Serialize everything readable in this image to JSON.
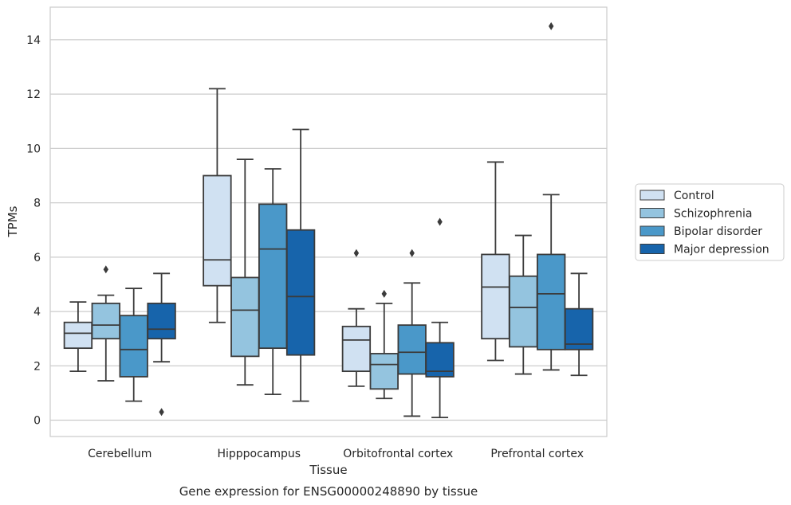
{
  "chart_data": {
    "type": "box",
    "title": "",
    "caption": "Gene expression for ENSG00000248890 by tissue",
    "xlabel": "Tissue",
    "ylabel": "TPMs",
    "ylim": [
      -0.6,
      15.2
    ],
    "yticks": [
      0,
      2,
      4,
      6,
      8,
      10,
      12,
      14
    ],
    "grid": "horizontal",
    "legend_position": "right",
    "categories": [
      "Cerebellum",
      "Hipppocampus",
      "Orbitofrontal cortex",
      "Prefrontal cortex"
    ],
    "series": [
      {
        "name": "Control",
        "color": "#d0e1f2",
        "boxes": [
          {
            "q1": 2.65,
            "median": 3.2,
            "q3": 3.6,
            "whisker_low": 1.8,
            "whisker_high": 4.35,
            "outliers": []
          },
          {
            "q1": 4.95,
            "median": 5.9,
            "q3": 9.0,
            "whisker_low": 3.6,
            "whisker_high": 12.2,
            "outliers": []
          },
          {
            "q1": 1.8,
            "median": 2.95,
            "q3": 3.45,
            "whisker_low": 1.25,
            "whisker_high": 4.1,
            "outliers": [
              6.15
            ]
          },
          {
            "q1": 3.0,
            "median": 4.9,
            "q3": 6.1,
            "whisker_low": 2.2,
            "whisker_high": 9.5,
            "outliers": []
          }
        ]
      },
      {
        "name": "Schizophrenia",
        "color": "#94c4df",
        "boxes": [
          {
            "q1": 3.0,
            "median": 3.5,
            "q3": 4.3,
            "whisker_low": 1.45,
            "whisker_high": 4.6,
            "outliers": [
              5.55
            ]
          },
          {
            "q1": 2.35,
            "median": 4.05,
            "q3": 5.25,
            "whisker_low": 1.3,
            "whisker_high": 9.6,
            "outliers": []
          },
          {
            "q1": 1.15,
            "median": 2.05,
            "q3": 2.45,
            "whisker_low": 0.8,
            "whisker_high": 4.3,
            "outliers": [
              4.65
            ]
          },
          {
            "q1": 2.7,
            "median": 4.15,
            "q3": 5.3,
            "whisker_low": 1.7,
            "whisker_high": 6.8,
            "outliers": []
          }
        ]
      },
      {
        "name": "Bipolar disorder",
        "color": "#4a98c9",
        "boxes": [
          {
            "q1": 1.6,
            "median": 2.6,
            "q3": 3.85,
            "whisker_low": 0.7,
            "whisker_high": 4.85,
            "outliers": []
          },
          {
            "q1": 2.65,
            "median": 6.3,
            "q3": 7.95,
            "whisker_low": 0.95,
            "whisker_high": 9.25,
            "outliers": []
          },
          {
            "q1": 1.7,
            "median": 2.5,
            "q3": 3.5,
            "whisker_low": 0.15,
            "whisker_high": 5.05,
            "outliers": [
              6.15
            ]
          },
          {
            "q1": 2.6,
            "median": 4.65,
            "q3": 6.1,
            "whisker_low": 1.85,
            "whisker_high": 8.3,
            "outliers": [
              14.5
            ]
          }
        ]
      },
      {
        "name": "Major depression",
        "color": "#1764ab",
        "boxes": [
          {
            "q1": 3.0,
            "median": 3.35,
            "q3": 4.3,
            "whisker_low": 2.15,
            "whisker_high": 5.4,
            "outliers": [
              0.3
            ]
          },
          {
            "q1": 2.4,
            "median": 4.55,
            "q3": 7.0,
            "whisker_low": 0.7,
            "whisker_high": 10.7,
            "outliers": []
          },
          {
            "q1": 1.6,
            "median": 1.8,
            "q3": 2.85,
            "whisker_low": 0.1,
            "whisker_high": 3.6,
            "outliers": [
              7.3
            ]
          },
          {
            "q1": 2.6,
            "median": 2.8,
            "q3": 4.1,
            "whisker_low": 1.65,
            "whisker_high": 5.4,
            "outliers": []
          }
        ]
      }
    ]
  }
}
